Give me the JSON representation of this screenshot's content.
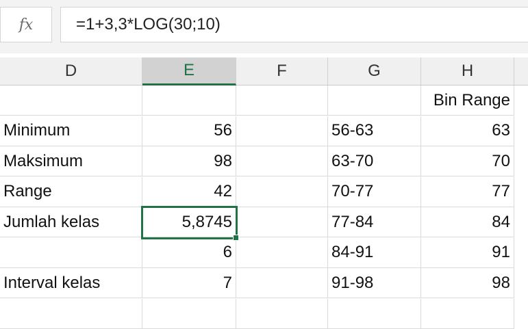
{
  "formula_bar": {
    "fx_label": "fx",
    "formula": "=1+3,3*LOG(30;10)"
  },
  "columns": [
    "D",
    "E",
    "F",
    "G",
    "H"
  ],
  "selected_column": "E",
  "rows": [
    {
      "D": "",
      "E": "",
      "F": "",
      "G": "",
      "H": "Bin Range"
    },
    {
      "D": "Minimum",
      "E": "56",
      "F": "",
      "G": "56-63",
      "H": "63"
    },
    {
      "D": "Maksimum",
      "E": "98",
      "F": "",
      "G": "63-70",
      "H": "70"
    },
    {
      "D": "Range",
      "E": "42",
      "F": "",
      "G": "70-77",
      "H": "77"
    },
    {
      "D": "Jumlah kelas",
      "E": "5,8745",
      "F": "",
      "G": "77-84",
      "H": "84"
    },
    {
      "D": "",
      "E": "6",
      "F": "",
      "G": "84-91",
      "H": "91"
    },
    {
      "D": "Interval kelas",
      "E": "7",
      "F": "",
      "G": "91-98",
      "H": "98"
    },
    {
      "D": "",
      "E": "",
      "F": "",
      "G": "",
      "H": ""
    }
  ],
  "colors": {
    "accent": "#217346"
  }
}
